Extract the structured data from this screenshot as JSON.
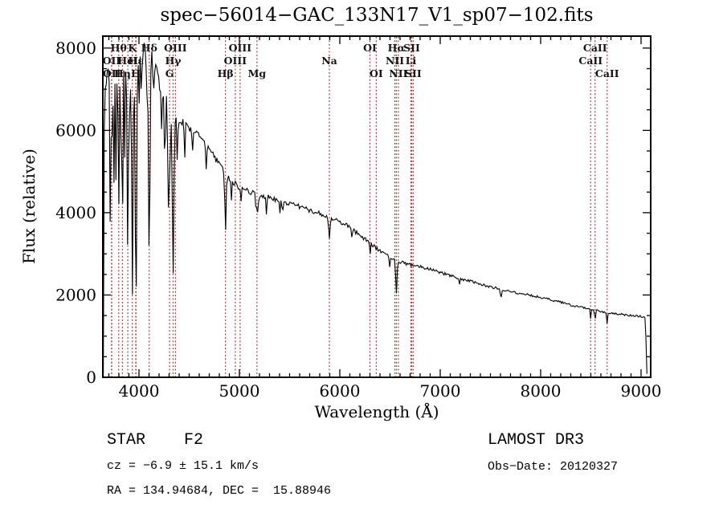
{
  "title": "spec−56014−GAC_133N17_V1_sp07−102.fits",
  "annotations": {
    "class_label": "STAR    F2",
    "survey": "LAMOST DR3",
    "cz": "cz = −6.9 ± 15.1 km/s",
    "obs_date": "Obs−Date: 20120327",
    "radec": "RA = 134.94684, DEC =  15.88946"
  },
  "chart_data": {
    "type": "line",
    "title": "spec−56014−GAC_133N17_V1_sp07−102.fits",
    "xlabel": "Wavelength (Å)",
    "ylabel": "Flux (relative)",
    "xlim": [
      3640,
      9096
    ],
    "ylim": [
      0,
      8290
    ],
    "x_major_ticks": [
      4000,
      5000,
      6000,
      7000,
      8000,
      9000
    ],
    "x_minor_step": 100,
    "y_major_ticks": [
      0,
      2000,
      4000,
      6000,
      8000
    ],
    "y_minor_step": 500,
    "grid": false,
    "legend": "none",
    "line_color": "#000000",
    "marker_color": "#9e3132",
    "line_markers": [
      {
        "label": "Hθ",
        "wavelength": 3798,
        "row": 1
      },
      {
        "label": "K",
        "wavelength": 3934,
        "row": 1
      },
      {
        "label": "Hδ",
        "wavelength": 4102,
        "row": 1
      },
      {
        "label": "OIII",
        "wavelength": 4363,
        "row": 1
      },
      {
        "label": "OIII",
        "wavelength": 5007,
        "row": 1
      },
      {
        "label": "OI",
        "wavelength": 6300,
        "row": 1
      },
      {
        "label": "Hα",
        "wavelength": 6563,
        "row": 1
      },
      {
        "label": "SII",
        "wavelength": 6716,
        "row": 1
      },
      {
        "label": "CaII",
        "wavelength": 8542,
        "row": 1
      },
      {
        "label": "OII",
        "wavelength": 3727,
        "row": 2
      },
      {
        "label": "HeI",
        "wavelength": 3889,
        "row": 2
      },
      {
        "label": "Hε",
        "wavelength": 3970,
        "row": 2
      },
      {
        "label": "Hγ",
        "wavelength": 4340,
        "row": 2
      },
      {
        "label": "OIII",
        "wavelength": 4959,
        "row": 2
      },
      {
        "label": "Na",
        "wavelength": 5896,
        "row": 2
      },
      {
        "label": "NII",
        "wavelength": 6548,
        "row": 2
      },
      {
        "label": "Li",
        "wavelength": 6708,
        "row": 2
      },
      {
        "label": "CaII",
        "wavelength": 8498,
        "row": 2
      },
      {
        "label": "OII",
        "wavelength": 3729,
        "row": 3
      },
      {
        "label": "Hη",
        "wavelength": 3835,
        "row": 3
      },
      {
        "label": "H",
        "wavelength": 3968,
        "row": 3
      },
      {
        "label": "G",
        "wavelength": 4305,
        "row": 3
      },
      {
        "label": "Hβ",
        "wavelength": 4861,
        "row": 3
      },
      {
        "label": "Mg",
        "wavelength": 5175,
        "row": 3
      },
      {
        "label": "OI",
        "wavelength": 6363,
        "row": 3
      },
      {
        "label": "NII",
        "wavelength": 6583,
        "row": 3
      },
      {
        "label": "SII",
        "wavelength": 6731,
        "row": 3
      },
      {
        "label": "CaII",
        "wavelength": 8662,
        "row": 3
      }
    ],
    "continuum": [
      [
        3645,
        80
      ],
      [
        3650,
        5500
      ],
      [
        3660,
        7000
      ],
      [
        3700,
        7400
      ],
      [
        3750,
        7600
      ],
      [
        3800,
        7750
      ],
      [
        3850,
        7850
      ],
      [
        3900,
        7950
      ],
      [
        3950,
        7900
      ],
      [
        4000,
        7950
      ],
      [
        4050,
        8050
      ],
      [
        4100,
        8000
      ],
      [
        4150,
        7650
      ],
      [
        4200,
        7150
      ],
      [
        4250,
        6850
      ],
      [
        4300,
        6600
      ],
      [
        4350,
        6450
      ],
      [
        4400,
        6250
      ],
      [
        4500,
        6050
      ],
      [
        4600,
        5850
      ],
      [
        4700,
        5550
      ],
      [
        4800,
        5150
      ],
      [
        4900,
        4800
      ],
      [
        5000,
        4620
      ],
      [
        5100,
        4520
      ],
      [
        5200,
        4430
      ],
      [
        5300,
        4370
      ],
      [
        5400,
        4300
      ],
      [
        5500,
        4220
      ],
      [
        5600,
        4150
      ],
      [
        5700,
        4060
      ],
      [
        5800,
        3980
      ],
      [
        5900,
        3890
      ],
      [
        6000,
        3790
      ],
      [
        6100,
        3640
      ],
      [
        6200,
        3450
      ],
      [
        6300,
        3270
      ],
      [
        6400,
        3070
      ],
      [
        6500,
        2920
      ],
      [
        6600,
        2800
      ],
      [
        6700,
        2740
      ],
      [
        6800,
        2690
      ],
      [
        6900,
        2620
      ],
      [
        7000,
        2550
      ],
      [
        7100,
        2470
      ],
      [
        7200,
        2400
      ],
      [
        7300,
        2340
      ],
      [
        7400,
        2270
      ],
      [
        7500,
        2200
      ],
      [
        7600,
        2140
      ],
      [
        7700,
        2090
      ],
      [
        7800,
        2040
      ],
      [
        7900,
        1990
      ],
      [
        8000,
        1940
      ],
      [
        8100,
        1880
      ],
      [
        8200,
        1820
      ],
      [
        8300,
        1760
      ],
      [
        8400,
        1700
      ],
      [
        8500,
        1650
      ],
      [
        8600,
        1600
      ],
      [
        8700,
        1560
      ],
      [
        8800,
        1530
      ],
      [
        8900,
        1500
      ],
      [
        9000,
        1480
      ],
      [
        9040,
        1460
      ],
      [
        9050,
        900
      ],
      [
        9058,
        80
      ]
    ],
    "absorption_lines": [
      [
        3712,
        1800,
        5
      ],
      [
        3727,
        2600,
        5
      ],
      [
        3750,
        2800,
        5
      ],
      [
        3771,
        3000,
        5
      ],
      [
        3798,
        3600,
        6
      ],
      [
        3820,
        1800,
        4
      ],
      [
        3835,
        4200,
        6
      ],
      [
        3860,
        1500,
        4
      ],
      [
        3889,
        4800,
        7
      ],
      [
        3910,
        1600,
        4
      ],
      [
        3934,
        5800,
        7
      ],
      [
        3969,
        5600,
        8
      ],
      [
        4000,
        1500,
        4
      ],
      [
        4026,
        1700,
        4
      ],
      [
        4077,
        1500,
        4
      ],
      [
        4102,
        5200,
        8
      ],
      [
        4144,
        1200,
        4
      ],
      [
        4227,
        1100,
        4
      ],
      [
        4260,
        1300,
        4
      ],
      [
        4290,
        2600,
        5
      ],
      [
        4305,
        2000,
        6
      ],
      [
        4340,
        4000,
        8
      ],
      [
        4383,
        1400,
        4
      ],
      [
        4455,
        800,
        4
      ],
      [
        4531,
        700,
        4
      ],
      [
        4668,
        600,
        4
      ],
      [
        4861,
        1350,
        6
      ],
      [
        4920,
        500,
        4
      ],
      [
        5015,
        450,
        4
      ],
      [
        5167,
        450,
        5
      ],
      [
        5183,
        500,
        5
      ],
      [
        5270,
        500,
        5
      ],
      [
        5406,
        300,
        4
      ],
      [
        5429,
        300,
        4
      ],
      [
        5896,
        580,
        6
      ],
      [
        6122,
        250,
        4
      ],
      [
        6300,
        320,
        4
      ],
      [
        6495,
        250,
        4
      ],
      [
        6563,
        780,
        7
      ],
      [
        7190,
        150,
        5
      ],
      [
        7605,
        180,
        6
      ],
      [
        8498,
        240,
        4
      ],
      [
        8542,
        300,
        4
      ],
      [
        8662,
        260,
        4
      ]
    ],
    "noise_amplitude": [
      [
        3650,
        420
      ],
      [
        3800,
        380
      ],
      [
        4000,
        320
      ],
      [
        4200,
        260
      ],
      [
        4400,
        200
      ],
      [
        4700,
        150
      ],
      [
        5000,
        120
      ],
      [
        5500,
        100
      ],
      [
        6000,
        85
      ],
      [
        6500,
        70
      ],
      [
        7000,
        60
      ],
      [
        7500,
        55
      ],
      [
        8000,
        50
      ],
      [
        8500,
        45
      ],
      [
        9000,
        40
      ]
    ]
  }
}
